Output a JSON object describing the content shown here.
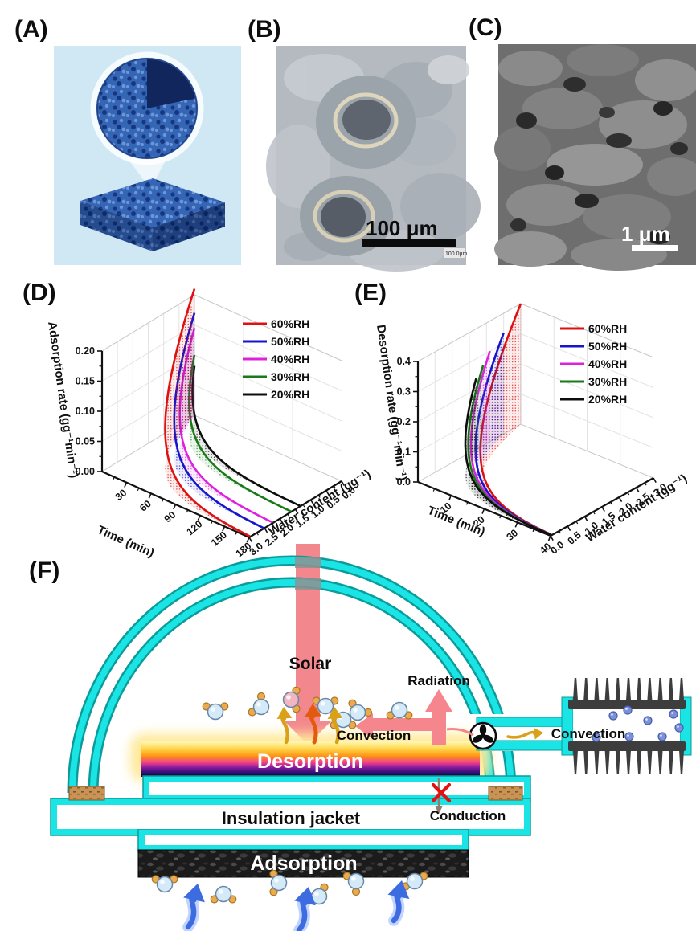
{
  "panels": {
    "a": {
      "label": "(A)"
    },
    "b": {
      "label": "(B)"
    },
    "c": {
      "label": "(C)"
    },
    "d": {
      "label": "(D)"
    },
    "e": {
      "label": "(E)"
    },
    "f": {
      "label": "(F)"
    }
  },
  "panel_b": {
    "scale_label": "100 μm",
    "stamp": "100.0μm"
  },
  "panel_c": {
    "scale_label": "1 μm"
  },
  "chart_data": [
    {
      "type": "line",
      "id": "adsorption-3d",
      "zlabel": "Adsorption rate (gg⁻¹min⁻¹)",
      "xlabel": "Time (min)",
      "ylabel": "Water content (gg⁻¹)",
      "x_ticks": [
        "30",
        "60",
        "90",
        "120",
        "150",
        "180"
      ],
      "x_range": [
        0,
        180
      ],
      "y_ticks": [
        "0.0",
        "0.5",
        "1.0",
        "1.5",
        "2.0",
        "2.5",
        "3.0"
      ],
      "y_range": [
        0,
        3
      ],
      "z_ticks": [
        "0.00",
        "0.05",
        "0.10",
        "0.15",
        "0.20"
      ],
      "z_range": [
        0,
        0.2
      ],
      "grid": true,
      "legend_position": "top-right",
      "water_mode": "rise",
      "series": [
        {
          "label": "60%RH",
          "color": "#dd1111",
          "peak_rate": 0.21,
          "water_value": 3.0
        },
        {
          "label": "50%RH",
          "color": "#1515cc",
          "peak_rate": 0.17,
          "water_value": 2.55
        },
        {
          "label": "40%RH",
          "color": "#dd22dd",
          "peak_rate": 0.145,
          "water_value": 2.25
        },
        {
          "label": "30%RH",
          "color": "#1a7a1a",
          "peak_rate": 0.1,
          "water_value": 1.65
        },
        {
          "label": "20%RH",
          "color": "#0d0d0d",
          "peak_rate": 0.082,
          "water_value": 1.35
        }
      ]
    },
    {
      "type": "line",
      "id": "desorption-3d",
      "zlabel": "Desorption rate (gg⁻¹min⁻¹)",
      "xlabel": "Time (min)",
      "ylabel": "Water content (gg⁻¹)",
      "x_ticks": [
        "10",
        "20",
        "30",
        "40"
      ],
      "x_range": [
        0,
        40
      ],
      "y_ticks": [
        "0.0",
        "0.5",
        "1.0",
        "1.5",
        "2.0",
        "2.5",
        "3.0"
      ],
      "y_range": [
        0,
        3
      ],
      "z_ticks": [
        "0.0",
        "0.1",
        "0.2",
        "0.3",
        "0.4"
      ],
      "z_range": [
        0,
        0.4
      ],
      "grid": true,
      "legend_position": "top-right",
      "water_mode": "decay",
      "series": [
        {
          "label": "60%RH",
          "color": "#dd1111",
          "peak_rate": 0.4,
          "water_value": 3.0
        },
        {
          "label": "50%RH",
          "color": "#1515cc",
          "peak_rate": 0.335,
          "water_value": 2.5
        },
        {
          "label": "40%RH",
          "color": "#dd22dd",
          "peak_rate": 0.3,
          "water_value": 2.1
        },
        {
          "label": "30%RH",
          "color": "#1a7a1a",
          "peak_rate": 0.265,
          "water_value": 1.9
        },
        {
          "label": "20%RH",
          "color": "#0d0d0d",
          "peak_rate": 0.235,
          "water_value": 1.7
        }
      ]
    }
  ],
  "panel_f": {
    "solar": "Solar",
    "radiation": "Radiation",
    "convection_inner": "Convection",
    "convection_outer": "Convection",
    "desorption": "Desorption",
    "insulation_jacket": "Insulation jacket",
    "conduction": "Conduction",
    "adsorption": "Adsorption"
  },
  "colors": {
    "pipe_cyan": "#1ae4e4",
    "pipe_edge": "#0b9b9b",
    "solar_salmon": "#f2888e",
    "arrow_gold": "#d9a018",
    "arrow_orange_red": "#e25a0e",
    "water_arrow_blue": "#3d6be0",
    "cross_red": "#e01212"
  }
}
